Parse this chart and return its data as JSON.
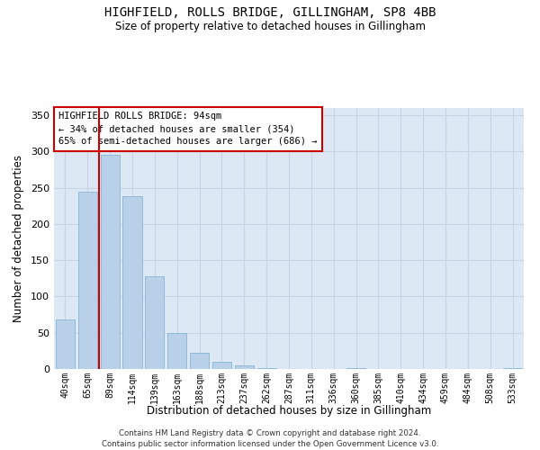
{
  "title": "HIGHFIELD, ROLLS BRIDGE, GILLINGHAM, SP8 4BB",
  "subtitle": "Size of property relative to detached houses in Gillingham",
  "xlabel": "Distribution of detached houses by size in Gillingham",
  "ylabel": "Number of detached properties",
  "categories": [
    "40sqm",
    "65sqm",
    "89sqm",
    "114sqm",
    "139sqm",
    "163sqm",
    "188sqm",
    "213sqm",
    "237sqm",
    "262sqm",
    "287sqm",
    "311sqm",
    "336sqm",
    "360sqm",
    "385sqm",
    "410sqm",
    "434sqm",
    "459sqm",
    "484sqm",
    "508sqm",
    "533sqm"
  ],
  "values": [
    68,
    245,
    295,
    238,
    128,
    50,
    22,
    10,
    5,
    1,
    0,
    0,
    0,
    1,
    0,
    0,
    0,
    0,
    0,
    0,
    1
  ],
  "bar_color": "#b8d0e8",
  "bar_edge_color": "#7aaed0",
  "grid_color": "#c8d4e4",
  "background_color": "#dce8f4",
  "vline_color": "#cc0000",
  "vline_pos": 1.5,
  "annotation_text": "HIGHFIELD ROLLS BRIDGE: 94sqm\n← 34% of detached houses are smaller (354)\n65% of semi-detached houses are larger (686) →",
  "annotation_box_color": "#ffffff",
  "annotation_box_edge": "#cc0000",
  "ylim": [
    0,
    360
  ],
  "yticks": [
    0,
    50,
    100,
    150,
    200,
    250,
    300,
    350
  ],
  "footer1": "Contains HM Land Registry data © Crown copyright and database right 2024.",
  "footer2": "Contains public sector information licensed under the Open Government Licence v3.0."
}
